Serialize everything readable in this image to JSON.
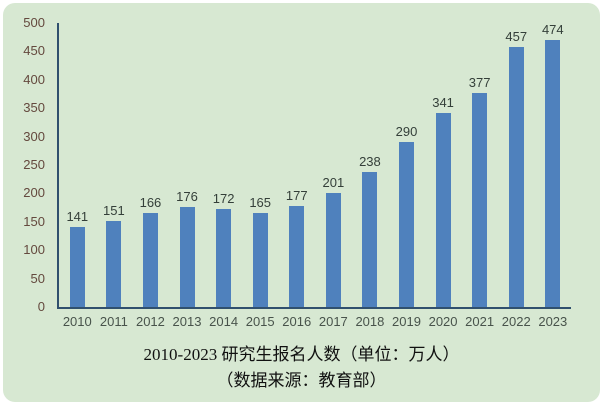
{
  "chart_data": {
    "type": "bar",
    "categories": [
      "2010",
      "2011",
      "2012",
      "2013",
      "2014",
      "2015",
      "2016",
      "2017",
      "2018",
      "2019",
      "2020",
      "2021",
      "2022",
      "2023"
    ],
    "values": [
      141,
      151,
      166,
      176,
      172,
      165,
      177,
      201,
      238,
      290,
      341,
      377,
      457,
      474
    ],
    "title": "2010-2023 研究生报名人数（单位：万人）",
    "subtitle": "（数据来源：教育部）",
    "xlabel": "",
    "ylabel": "",
    "ylim": [
      0,
      500
    ],
    "yticks": [
      0,
      50,
      100,
      150,
      200,
      250,
      300,
      350,
      400,
      450,
      500
    ],
    "grid": "off",
    "legend": "none",
    "data_labels": "above-bars",
    "bar_color": "#4f81bd",
    "background_color": "#d7e8d2",
    "axis_color": "#30506e"
  }
}
